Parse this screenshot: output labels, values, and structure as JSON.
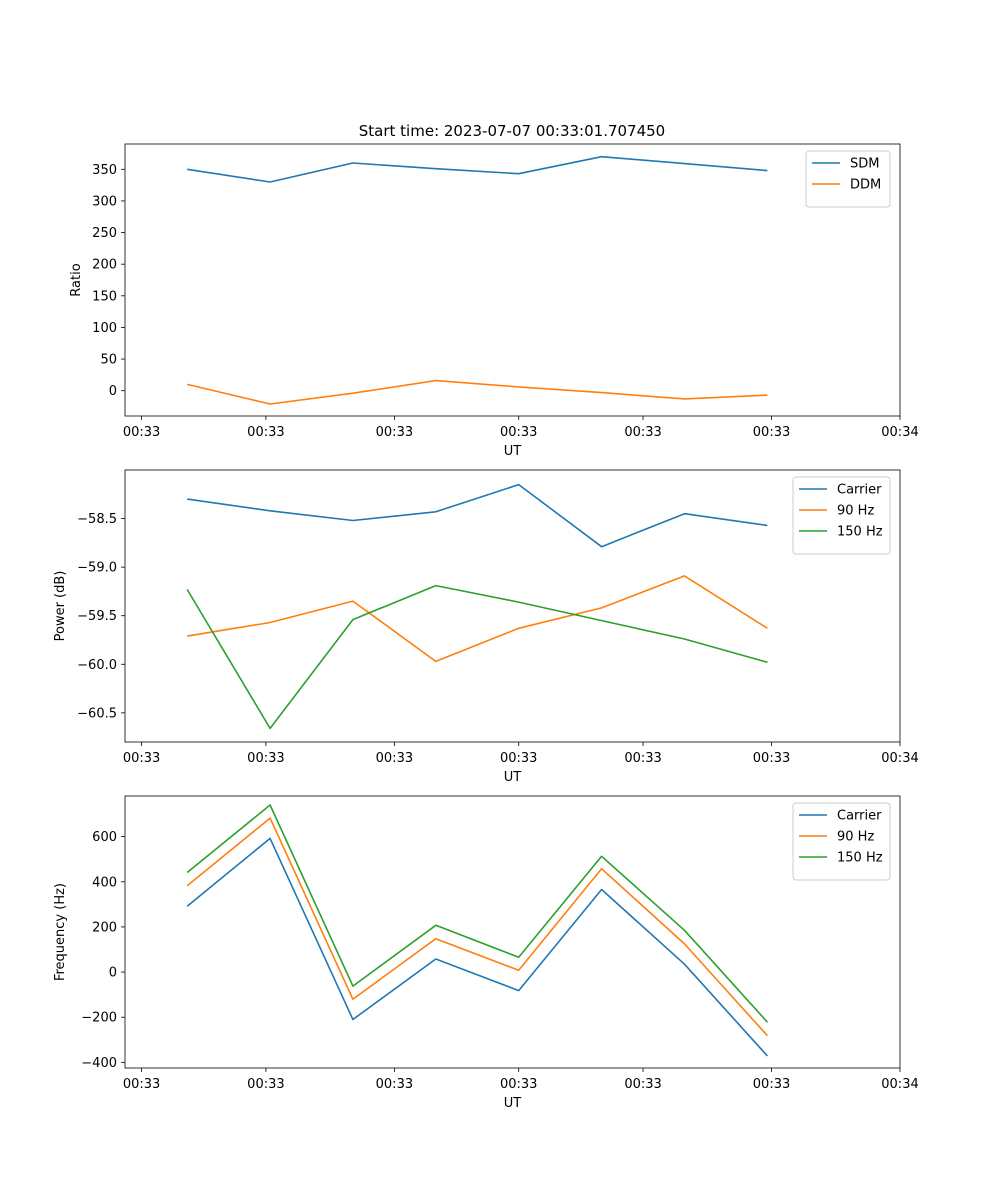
{
  "figure_title": "Start time: 2023-07-07 00:33:01.707450",
  "colors": {
    "blue": "#1f77b4",
    "orange": "#ff7f0e",
    "green": "#2ca02c"
  },
  "chart_data": [
    {
      "type": "line",
      "title": "Start time: 2023-07-07 00:33:01.707450",
      "xlabel": "UT",
      "ylabel": "Ratio",
      "x": [
        1,
        2,
        3,
        4,
        5,
        6,
        7,
        8
      ],
      "xlim": [
        0.25,
        9.6
      ],
      "xticks": [
        0.45,
        1.95,
        3.5,
        5.0,
        6.5,
        8.05,
        9.6
      ],
      "xtick_labels": [
        "00:33",
        "00:33",
        "00:33",
        "00:33",
        "00:33",
        "00:33",
        "00:34"
      ],
      "ylim": [
        -40,
        390
      ],
      "yticks": [
        0,
        50,
        100,
        150,
        200,
        250,
        300,
        350
      ],
      "ytick_labels": [
        "0",
        "50",
        "100",
        "150",
        "200",
        "250",
        "300",
        "350"
      ],
      "legend_position": "top-right",
      "series": [
        {
          "name": "SDM",
          "color": "#1f77b4",
          "values": [
            350,
            330,
            360,
            351,
            343,
            370,
            359,
            348
          ]
        },
        {
          "name": "DDM",
          "color": "#ff7f0e",
          "values": [
            10,
            -21,
            -4,
            16,
            6,
            -3,
            -13,
            -7
          ]
        }
      ]
    },
    {
      "type": "line",
      "title": "",
      "xlabel": "UT",
      "ylabel": "Power (dB)",
      "x": [
        1,
        2,
        3,
        4,
        5,
        6,
        7,
        8
      ],
      "xlim": [
        0.25,
        9.6
      ],
      "xticks": [
        0.45,
        1.95,
        3.5,
        5.0,
        6.5,
        8.05,
        9.6
      ],
      "xtick_labels": [
        "00:33",
        "00:33",
        "00:33",
        "00:33",
        "00:33",
        "00:33",
        "00:34"
      ],
      "ylim": [
        -60.8,
        -58.0
      ],
      "yticks": [
        -60.5,
        -60.0,
        -59.5,
        -59.0,
        -58.5
      ],
      "ytick_labels": [
        "−60.5",
        "−60.0",
        "−59.5",
        "−59.0",
        "−58.5"
      ],
      "legend_position": "top-right",
      "series": [
        {
          "name": "Carrier",
          "color": "#1f77b4",
          "values": [
            -58.3,
            -58.42,
            -58.52,
            -58.43,
            -58.15,
            -58.79,
            -58.45,
            -58.57
          ]
        },
        {
          "name": "90 Hz",
          "color": "#ff7f0e",
          "values": [
            -59.71,
            -59.57,
            -59.35,
            -59.97,
            -59.63,
            -59.42,
            -59.09,
            -59.63
          ]
        },
        {
          "name": "150 Hz",
          "color": "#2ca02c",
          "values": [
            -59.23,
            -60.66,
            -59.54,
            -59.19,
            -59.36,
            -59.55,
            -59.74,
            -59.98
          ]
        }
      ]
    },
    {
      "type": "line",
      "title": "",
      "xlabel": "UT",
      "ylabel": "Frequency (Hz)",
      "x": [
        1,
        2,
        3,
        4,
        5,
        6,
        7,
        8
      ],
      "xlim": [
        0.25,
        9.6
      ],
      "xticks": [
        0.45,
        1.95,
        3.5,
        5.0,
        6.5,
        8.05,
        9.6
      ],
      "xtick_labels": [
        "00:33",
        "00:33",
        "00:33",
        "00:33",
        "00:33",
        "00:33",
        "00:34"
      ],
      "ylim": [
        -425,
        780
      ],
      "yticks": [
        -400,
        -200,
        0,
        200,
        400,
        600
      ],
      "ytick_labels": [
        "−400",
        "−200",
        "0",
        "200",
        "400",
        "600"
      ],
      "legend_position": "top-right",
      "series": [
        {
          "name": "Carrier",
          "color": "#1f77b4",
          "values": [
            292,
            592,
            -210,
            58,
            -82,
            366,
            35,
            -372
          ]
        },
        {
          "name": "90 Hz",
          "color": "#ff7f0e",
          "values": [
            382,
            682,
            -120,
            148,
            8,
            458,
            125,
            -282
          ]
        },
        {
          "name": "150 Hz",
          "color": "#2ca02c",
          "values": [
            441,
            740,
            -62,
            207,
            66,
            513,
            185,
            -222
          ]
        }
      ]
    }
  ]
}
